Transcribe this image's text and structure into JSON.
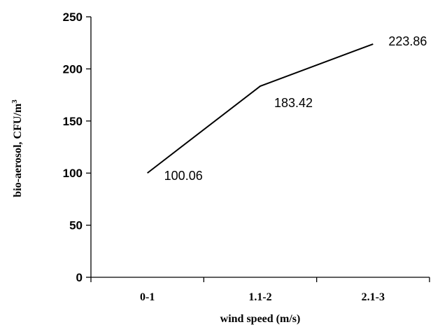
{
  "chart_data": {
    "type": "line",
    "categories": [
      "0-1",
      "1.1-2",
      "2.1-3"
    ],
    "series": [
      {
        "values": [
          100.06,
          183.42,
          223.86
        ],
        "data_labels": [
          "100.06",
          "183.42",
          "223.86"
        ]
      }
    ],
    "xlabel": "wind speed (m/s)",
    "ylabel": "bio-aerosol, CFU/m",
    "ylabel_superscript": "3",
    "ylim": [
      0,
      250
    ],
    "yticks": [
      0,
      50,
      100,
      150,
      200,
      250
    ],
    "grid": false,
    "line_color": "#000000"
  }
}
